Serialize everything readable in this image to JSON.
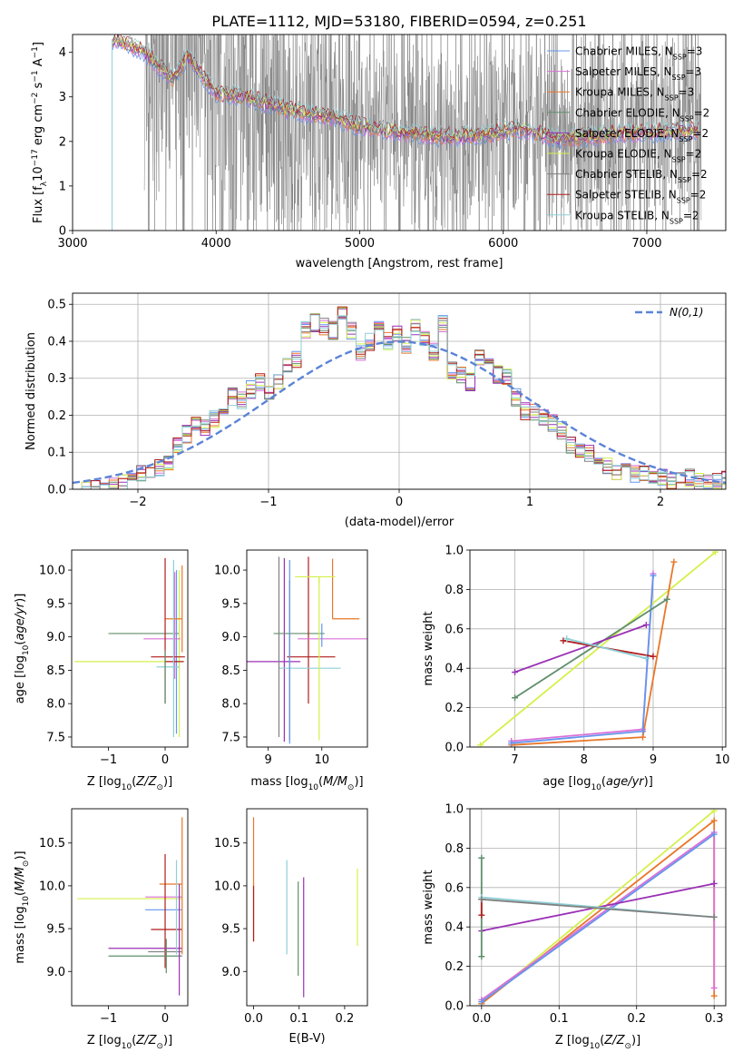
{
  "figure_title": "PLATE=1112, MJD=53180, FIBERID=0594, z=0.251",
  "series": [
    {
      "name": "Chabrier MILES",
      "nssp": "3",
      "color": "#6495ed"
    },
    {
      "name": "Salpeter MILES",
      "nssp": "3",
      "color": "#da70d6"
    },
    {
      "name": "Kroupa MILES",
      "nssp": "3",
      "color": "#e8772a"
    },
    {
      "name": "Chabrier ELODIE",
      "nssp": "2",
      "color": "#5f8f6b"
    },
    {
      "name": "Salpeter ELODIE",
      "nssp": "2",
      "color": "#9b30b5"
    },
    {
      "name": "Kroupa ELODIE",
      "nssp": "2",
      "color": "#d4f04a"
    },
    {
      "name": "Chabrier STELIB",
      "nssp": "2",
      "color": "#808080"
    },
    {
      "name": "Salpeter STELIB",
      "nssp": "2",
      "color": "#b01c1c"
    },
    {
      "name": "Kroupa STELIB",
      "nssp": "2",
      "color": "#8ecfd6"
    }
  ],
  "chart_data": [
    {
      "id": "spectrum",
      "type": "line",
      "xlabel": "wavelength [Angstrom, rest frame]",
      "ylabel": "Flux [fλ10⁻¹⁷ erg cm⁻² s⁻¹ A⁻¹]",
      "xlim": [
        3000,
        7550
      ],
      "ylim": [
        0,
        4.4
      ],
      "xticks": [
        3000,
        4000,
        5000,
        6000,
        7000
      ],
      "yticks": [
        0,
        1,
        2,
        3,
        4
      ],
      "data_color": "#808080",
      "data_start": 3500,
      "data_end": 7380,
      "model_start": 3280,
      "model_anchor_x": [
        3280,
        3300,
        3500,
        3700,
        3800,
        4000,
        4200,
        4500,
        4800,
        5000,
        5300,
        5600,
        5900,
        6100,
        6400,
        6700,
        7000,
        7370
      ],
      "model_anchor_y": [
        4.3,
        4.3,
        4.0,
        3.4,
        3.9,
        3.1,
        3.0,
        2.7,
        2.55,
        2.35,
        2.2,
        2.1,
        2.15,
        2.3,
        2.05,
        2.15,
        2.2,
        2.25
      ],
      "legend_position": "upper right"
    },
    {
      "id": "residuals",
      "type": "histogram",
      "xlabel": "(data-model)/error",
      "ylabel": "Normed distribution",
      "xlim": [
        -2.5,
        2.5
      ],
      "ylim": [
        0,
        0.53
      ],
      "xticks": [
        -2,
        -1,
        0,
        1,
        2
      ],
      "yticks": [
        0.0,
        0.1,
        0.2,
        0.3,
        0.4,
        0.5
      ],
      "grid": true,
      "bin_width": 0.1,
      "bin_start": -2.5,
      "hist_values": [
        0,
        0,
        0,
        0.01,
        0.01,
        0.02,
        0.02,
        0.04,
        0.05,
        0.06,
        0.07,
        0.12,
        0.15,
        0.18,
        0.17,
        0.19,
        0.22,
        0.25,
        0.24,
        0.27,
        0.29,
        0.26,
        0.29,
        0.33,
        0.35,
        0.43,
        0.45,
        0.44,
        0.43,
        0.48,
        0.43,
        0.37,
        0.4,
        0.43,
        0.4,
        0.42,
        0.39,
        0.44,
        0.41,
        0.37,
        0.45,
        0.32,
        0.31,
        0.29,
        0.36,
        0.33,
        0.31,
        0.3,
        0.25,
        0.21,
        0.21,
        0.19,
        0.18,
        0.16,
        0.12,
        0.11,
        0.1,
        0.07,
        0.06,
        0.05,
        0.05,
        0.04,
        0.04,
        0.03,
        0.03,
        0.02,
        0.02,
        0.03,
        0.02,
        0.02,
        0.02,
        0.03
      ],
      "gauss_label": "N(0,1)",
      "gauss_color": "#5b84d6",
      "legend_position": "upper right"
    },
    {
      "id": "age_vs_Z",
      "type": "errorbar",
      "xlabel": "Z [log10(Z/Z⊙)]",
      "ylabel": "age  [log10(age/yr)]",
      "xlim": [
        -1.65,
        0.4
      ],
      "ylim": [
        7.35,
        10.3
      ],
      "xticks": [
        -1,
        0
      ],
      "yticks": [
        7.5,
        8.0,
        8.5,
        9.0,
        9.5,
        10.0
      ],
      "points": [
        {
          "s": 5,
          "x": -0.3,
          "xerr": [
            1.3,
            0.6
          ],
          "y": 8.63,
          "yerr": [
            0,
            0
          ]
        },
        {
          "s": 3,
          "x": -0.05,
          "xerr": [
            0.95,
            0.3
          ],
          "y": 9.05,
          "yerr": [
            0,
            0
          ]
        },
        {
          "s": 5,
          "x": 0.25,
          "xerr": [
            0,
            0
          ],
          "y": 9.2,
          "yerr": [
            1.7,
            0.8
          ]
        },
        {
          "s": 0,
          "x": 0.2,
          "xerr": [
            0,
            0
          ],
          "y": 9.0,
          "yerr": [
            1.45,
            1.0
          ]
        },
        {
          "s": 1,
          "x": 0.17,
          "xerr": [
            0.55,
            0.1
          ],
          "y": 8.97,
          "yerr": [
            0.6,
            1.0
          ]
        },
        {
          "s": 2,
          "x": 0.3,
          "xerr": [
            0.3,
            0.0
          ],
          "y": 9.27,
          "yerr": [
            0.5,
            0.8
          ]
        },
        {
          "s": 7,
          "x": 0.0,
          "xerr": [
            0,
            0.33
          ],
          "y": 8.63,
          "yerr": [
            0.63,
            1.55
          ]
        },
        {
          "s": 7,
          "x": 0.05,
          "xerr": [
            0.3,
            0.3
          ],
          "y": 8.7,
          "yerr": [
            0,
            0
          ]
        },
        {
          "s": 8,
          "x": 0.05,
          "xerr": [
            0.2,
            0.2
          ],
          "y": 8.55,
          "yerr": [
            0,
            0
          ]
        },
        {
          "s": 8,
          "x": 0.15,
          "xerr": [
            0,
            0
          ],
          "y": 9.0,
          "yerr": [
            1.5,
            1.15
          ]
        },
        {
          "s": 3,
          "x": 0.0,
          "xerr": [
            0,
            0
          ],
          "y": 8.8,
          "yerr": [
            0.8,
            0
          ]
        }
      ]
    },
    {
      "id": "age_vs_mass",
      "type": "errorbar",
      "xlabel": "mass [log10(M/M⊙)]",
      "ylabel": "",
      "xlim": [
        8.6,
        10.85
      ],
      "ylim": [
        7.35,
        10.3
      ],
      "xticks": [
        9,
        10
      ],
      "yticks": [
        7.5,
        8.0,
        8.5,
        9.0,
        9.5,
        10.0
      ],
      "points": [
        {
          "s": 4,
          "x": 9.3,
          "xerr": [
            0.7,
            0.3
          ],
          "y": 8.63,
          "yerr": [
            1.2,
            1.55
          ]
        },
        {
          "s": 3,
          "x": 9.4,
          "xerr": [
            0.3,
            0.65
          ],
          "y": 9.05,
          "yerr": [
            1.6,
            0.8
          ]
        },
        {
          "s": 7,
          "x": 9.75,
          "xerr": [
            0.4,
            0.5
          ],
          "y": 8.7,
          "yerr": [
            0.7,
            1.5
          ]
        },
        {
          "s": 2,
          "x": 10.2,
          "xerr": [
            0,
            0.5
          ],
          "y": 9.27,
          "yerr": [
            0,
            0.9
          ]
        },
        {
          "s": 1,
          "x": 10.0,
          "xerr": [
            0.45,
            0.85
          ],
          "y": 8.97,
          "yerr": [
            0,
            0
          ]
        },
        {
          "s": 8,
          "x": 9.6,
          "xerr": [
            0.4,
            0.75
          ],
          "y": 8.53,
          "yerr": [
            0,
            0
          ]
        },
        {
          "s": 5,
          "x": 9.95,
          "xerr": [
            0.45,
            0.3
          ],
          "y": 9.9,
          "yerr": [
            0.1,
            0
          ]
        },
        {
          "s": 5,
          "x": 9.95,
          "xerr": [
            0,
            0
          ],
          "y": 8.0,
          "yerr": [
            0.55,
            1.9
          ]
        },
        {
          "s": 0,
          "x": 9.4,
          "xerr": [
            0,
            0
          ],
          "y": 8.9,
          "yerr": [
            1.5,
            1.25
          ]
        },
        {
          "s": 6,
          "x": 9.2,
          "xerr": [
            0,
            0
          ],
          "y": 8.7,
          "yerr": [
            1.2,
            1.5
          ]
        },
        {
          "s": 0,
          "x": 10.0,
          "xerr": [
            0,
            0
          ],
          "y": 9.2,
          "yerr": [
            0.35,
            0.0
          ]
        }
      ]
    },
    {
      "id": "mw_vs_age",
      "type": "line",
      "xlabel": "age  [log10(age/yr)]",
      "ylabel": "mass weight",
      "xlim": [
        6.35,
        10.05
      ],
      "ylim": [
        0,
        1
      ],
      "xticks": [
        7,
        8,
        9,
        10
      ],
      "yticks": [
        0.0,
        0.2,
        0.4,
        0.6,
        0.8,
        1.0
      ],
      "grid": true,
      "series": [
        {
          "s": 5,
          "x": [
            6.5,
            9.9
          ],
          "y": [
            0.01,
            0.99
          ]
        },
        {
          "s": 2,
          "x": [
            6.95,
            8.85,
            9.3
          ],
          "y": [
            0.01,
            0.05,
            0.94
          ]
        },
        {
          "s": 1,
          "x": [
            6.95,
            8.85,
            9.0
          ],
          "y": [
            0.03,
            0.09,
            0.88
          ]
        },
        {
          "s": 0,
          "x": [
            6.95,
            8.85,
            9.0
          ],
          "y": [
            0.02,
            0.08,
            0.87
          ]
        },
        {
          "s": 3,
          "x": [
            7.0,
            9.2
          ],
          "y": [
            0.25,
            0.75
          ]
        },
        {
          "s": 4,
          "x": [
            7.0,
            8.9
          ],
          "y": [
            0.38,
            0.62
          ]
        },
        {
          "s": 7,
          "x": [
            7.7,
            9.0
          ],
          "y": [
            0.54,
            0.46
          ]
        },
        {
          "s": 8,
          "x": [
            7.75,
            8.9
          ],
          "y": [
            0.55,
            0.45
          ]
        }
      ]
    },
    {
      "id": "mass_vs_Z",
      "type": "errorbar",
      "xlabel": "Z [log10(Z/Z⊙)]",
      "ylabel": "mass [log10(M/M⊙)]",
      "xlim": [
        -1.65,
        0.4
      ],
      "ylim": [
        8.6,
        10.9
      ],
      "xticks": [
        -1,
        0
      ],
      "yticks": [
        9.0,
        9.5,
        10.0,
        10.5
      ],
      "points": [
        {
          "s": 5,
          "x": 0.0,
          "xerr": [
            1.55,
            0.3
          ],
          "y": 9.85,
          "yerr": [
            0,
            0
          ]
        },
        {
          "s": 1,
          "x": 0.0,
          "xerr": [
            0.35,
            0.3
          ],
          "y": 9.87,
          "yerr": [
            0,
            0
          ]
        },
        {
          "s": 0,
          "x": 0.0,
          "xerr": [
            0.35,
            0.3
          ],
          "y": 9.72,
          "yerr": [
            0,
            0
          ]
        },
        {
          "s": 2,
          "x": 0.0,
          "xerr": [
            0.1,
            0.3
          ],
          "y": 10.02,
          "yerr": [
            0,
            0
          ]
        },
        {
          "s": 7,
          "x": 0.0,
          "xerr": [
            0.25,
            0.3
          ],
          "y": 9.49,
          "yerr": [
            0.45,
            0.88
          ]
        },
        {
          "s": 4,
          "x": 0.0,
          "xerr": [
            1.0,
            0.3
          ],
          "y": 9.27,
          "yerr": [
            0,
            0
          ]
        },
        {
          "s": 3,
          "x": 0.0,
          "xerr": [
            1.0,
            0.3
          ],
          "y": 9.18,
          "yerr": [
            0,
            0
          ]
        },
        {
          "s": 6,
          "x": 0.0,
          "xerr": [
            0.3,
            0.3
          ],
          "y": 9.23,
          "yerr": [
            0,
            0
          ]
        },
        {
          "s": 8,
          "x": 0.2,
          "xerr": [
            0,
            0
          ],
          "y": 9.7,
          "yerr": [
            0.5,
            0.6
          ]
        },
        {
          "s": 2,
          "x": 0.3,
          "xerr": [
            0,
            0
          ],
          "y": 10.0,
          "yerr": [
            0.8,
            0.8
          ]
        },
        {
          "s": 4,
          "x": 0.25,
          "xerr": [
            0,
            0
          ],
          "y": 9.27,
          "yerr": [
            0.55,
            0.75
          ]
        },
        {
          "s": 3,
          "x": 0.02,
          "xerr": [
            0,
            0
          ],
          "y": 9.18,
          "yerr": [
            0.2,
            0.2
          ]
        }
      ]
    },
    {
      "id": "mass_vs_ebv",
      "type": "errorbar",
      "xlabel": "E(B-V)",
      "ylabel": "",
      "xlim": [
        -0.015,
        0.25
      ],
      "ylim": [
        8.6,
        10.9
      ],
      "xticks": [
        0.0,
        0.1,
        0.2
      ],
      "yticks": [
        9.0,
        9.5,
        10.0,
        10.5
      ],
      "points": [
        {
          "s": 2,
          "x": 0.0,
          "xerr": [
            0,
            0
          ],
          "y": 10.1,
          "yerr": [
            0.75,
            0.7
          ]
        },
        {
          "s": 7,
          "x": 0.0,
          "xerr": [
            0,
            0
          ],
          "y": 9.8,
          "yerr": [
            0.45,
            0.2
          ]
        },
        {
          "s": 8,
          "x": 0.073,
          "xerr": [
            0,
            0
          ],
          "y": 9.75,
          "yerr": [
            0.55,
            0.55
          ]
        },
        {
          "s": 3,
          "x": 0.098,
          "xerr": [
            0,
            0
          ],
          "y": 9.5,
          "yerr": [
            0.55,
            0.55
          ]
        },
        {
          "s": 4,
          "x": 0.11,
          "xerr": [
            0,
            0
          ],
          "y": 9.3,
          "yerr": [
            0.6,
            0.8
          ]
        },
        {
          "s": 5,
          "x": 0.228,
          "xerr": [
            0,
            0
          ],
          "y": 9.75,
          "yerr": [
            0.45,
            0.45
          ]
        }
      ]
    },
    {
      "id": "mw_vs_Z",
      "type": "line",
      "xlabel": "Z [log10(Z/Z⊙)]",
      "ylabel": "mass weight",
      "xlim": [
        -0.015,
        0.315
      ],
      "ylim": [
        0,
        1
      ],
      "xticks": [
        0.0,
        0.1,
        0.2,
        0.3
      ],
      "yticks": [
        0.0,
        0.2,
        0.4,
        0.6,
        0.8,
        1.0
      ],
      "grid": true,
      "series": [
        {
          "s": 5,
          "x": [
            0.0,
            0.3
          ],
          "y": [
            0.01,
            0.99
          ]
        },
        {
          "s": 2,
          "x": [
            0.0,
            0.3,
            0.3
          ],
          "y": [
            0.01,
            0.94,
            0.05
          ]
        },
        {
          "s": 1,
          "x": [
            0.0,
            0.3,
            0.3
          ],
          "y": [
            0.03,
            0.88,
            0.09
          ]
        },
        {
          "s": 0,
          "x": [
            0.0,
            0.3
          ],
          "y": [
            0.02,
            0.87
          ]
        },
        {
          "s": 4,
          "x": [
            0.0,
            0.3
          ],
          "y": [
            0.38,
            0.62
          ]
        },
        {
          "s": 3,
          "x": [
            0.0,
            0.0
          ],
          "y": [
            0.25,
            0.75
          ]
        },
        {
          "s": 7,
          "x": [
            0.0,
            0.0
          ],
          "y": [
            0.46,
            0.54
          ]
        },
        {
          "s": 8,
          "x": [
            0.0,
            0.3
          ],
          "y": [
            0.55,
            0.45
          ]
        },
        {
          "s": 6,
          "x": [
            0.0,
            0.3
          ],
          "y": [
            0.54,
            0.45
          ]
        }
      ]
    }
  ]
}
